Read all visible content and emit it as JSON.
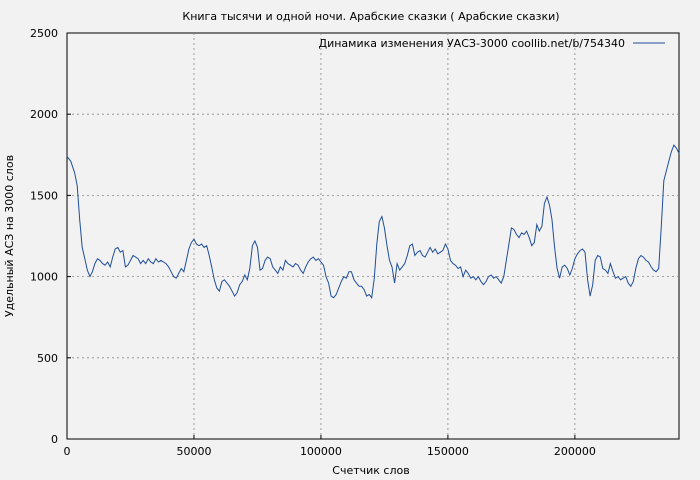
{
  "chart_data": {
    "type": "line",
    "title": "Книга тысячи и одной ночи. Арабские сказки ( Арабские сказки)",
    "xlabel": "Счетчик слов",
    "ylabel": "Удельный АСЗ на 3000 слов",
    "xlim": [
      0,
      241000
    ],
    "ylim": [
      0,
      2500
    ],
    "x_ticks": [
      0,
      50000,
      100000,
      150000,
      200000
    ],
    "y_ticks": [
      0,
      500,
      1000,
      1500,
      2000,
      2500
    ],
    "grid": true,
    "legend_position": "top-right",
    "series": [
      {
        "name": "Динамика изменения УАСЗ-3000 coollib.net/b/754340",
        "color": "#1f4e99",
        "points": [
          [
            0,
            1740
          ],
          [
            1500,
            1710
          ],
          [
            3000,
            1640
          ],
          [
            4000,
            1560
          ],
          [
            5000,
            1350
          ],
          [
            6000,
            1180
          ],
          [
            7000,
            1110
          ],
          [
            8000,
            1040
          ],
          [
            9000,
            1000
          ],
          [
            10000,
            1030
          ],
          [
            11000,
            1080
          ],
          [
            12000,
            1110
          ],
          [
            13000,
            1100
          ],
          [
            14000,
            1080
          ],
          [
            15000,
            1070
          ],
          [
            16000,
            1090
          ],
          [
            17000,
            1060
          ],
          [
            18000,
            1120
          ],
          [
            19000,
            1170
          ],
          [
            20000,
            1180
          ],
          [
            21000,
            1150
          ],
          [
            22000,
            1160
          ],
          [
            23000,
            1060
          ],
          [
            24000,
            1070
          ],
          [
            25000,
            1100
          ],
          [
            26000,
            1130
          ],
          [
            27000,
            1120
          ],
          [
            28000,
            1110
          ],
          [
            29000,
            1080
          ],
          [
            30000,
            1100
          ],
          [
            31000,
            1080
          ],
          [
            32000,
            1110
          ],
          [
            33000,
            1090
          ],
          [
            34000,
            1080
          ],
          [
            35000,
            1110
          ],
          [
            36000,
            1090
          ],
          [
            37000,
            1100
          ],
          [
            38000,
            1090
          ],
          [
            39000,
            1080
          ],
          [
            40000,
            1060
          ],
          [
            41000,
            1030
          ],
          [
            42000,
            1000
          ],
          [
            43000,
            990
          ],
          [
            44000,
            1020
          ],
          [
            45000,
            1050
          ],
          [
            46000,
            1030
          ],
          [
            47000,
            1100
          ],
          [
            48000,
            1170
          ],
          [
            49000,
            1210
          ],
          [
            50000,
            1230
          ],
          [
            51000,
            1200
          ],
          [
            52000,
            1190
          ],
          [
            53000,
            1200
          ],
          [
            54000,
            1180
          ],
          [
            55000,
            1190
          ],
          [
            56000,
            1130
          ],
          [
            57000,
            1060
          ],
          [
            58000,
            980
          ],
          [
            59000,
            930
          ],
          [
            60000,
            910
          ],
          [
            61000,
            970
          ],
          [
            62000,
            980
          ],
          [
            63000,
            960
          ],
          [
            64000,
            940
          ],
          [
            65000,
            910
          ],
          [
            66000,
            880
          ],
          [
            67000,
            900
          ],
          [
            68000,
            950
          ],
          [
            69000,
            970
          ],
          [
            70000,
            1010
          ],
          [
            71000,
            980
          ],
          [
            72000,
            1050
          ],
          [
            73000,
            1190
          ],
          [
            74000,
            1220
          ],
          [
            75000,
            1180
          ],
          [
            76000,
            1040
          ],
          [
            77000,
            1050
          ],
          [
            78000,
            1100
          ],
          [
            79000,
            1120
          ],
          [
            80000,
            1110
          ],
          [
            81000,
            1060
          ],
          [
            82000,
            1040
          ],
          [
            83000,
            1020
          ],
          [
            84000,
            1060
          ],
          [
            85000,
            1040
          ],
          [
            86000,
            1100
          ],
          [
            87000,
            1080
          ],
          [
            88000,
            1070
          ],
          [
            89000,
            1060
          ],
          [
            90000,
            1080
          ],
          [
            91000,
            1070
          ],
          [
            92000,
            1040
          ],
          [
            93000,
            1020
          ],
          [
            94000,
            1060
          ],
          [
            95000,
            1090
          ],
          [
            96000,
            1110
          ],
          [
            97000,
            1120
          ],
          [
            98000,
            1100
          ],
          [
            99000,
            1110
          ],
          [
            100000,
            1090
          ],
          [
            101000,
            1070
          ],
          [
            102000,
            1000
          ],
          [
            103000,
            960
          ],
          [
            104000,
            880
          ],
          [
            105000,
            870
          ],
          [
            106000,
            890
          ],
          [
            107000,
            930
          ],
          [
            108000,
            970
          ],
          [
            109000,
            1000
          ],
          [
            110000,
            990
          ],
          [
            111000,
            1030
          ],
          [
            112000,
            1030
          ],
          [
            113000,
            980
          ],
          [
            114000,
            960
          ],
          [
            115000,
            940
          ],
          [
            116000,
            940
          ],
          [
            117000,
            920
          ],
          [
            118000,
            880
          ],
          [
            119000,
            890
          ],
          [
            120000,
            870
          ],
          [
            121000,
            990
          ],
          [
            122000,
            1200
          ],
          [
            123000,
            1340
          ],
          [
            124000,
            1370
          ],
          [
            125000,
            1300
          ],
          [
            126000,
            1190
          ],
          [
            127000,
            1100
          ],
          [
            128000,
            1060
          ],
          [
            129000,
            960
          ],
          [
            130000,
            1080
          ],
          [
            131000,
            1040
          ],
          [
            132000,
            1060
          ],
          [
            133000,
            1080
          ],
          [
            134000,
            1130
          ],
          [
            135000,
            1190
          ],
          [
            136000,
            1200
          ],
          [
            137000,
            1130
          ],
          [
            138000,
            1150
          ],
          [
            139000,
            1160
          ],
          [
            140000,
            1130
          ],
          [
            141000,
            1120
          ],
          [
            142000,
            1150
          ],
          [
            143000,
            1180
          ],
          [
            144000,
            1150
          ],
          [
            145000,
            1170
          ],
          [
            146000,
            1140
          ],
          [
            147000,
            1150
          ],
          [
            148000,
            1160
          ],
          [
            149000,
            1200
          ],
          [
            150000,
            1170
          ],
          [
            151000,
            1100
          ],
          [
            152000,
            1080
          ],
          [
            153000,
            1070
          ],
          [
            154000,
            1050
          ],
          [
            155000,
            1060
          ],
          [
            156000,
            1000
          ],
          [
            157000,
            1040
          ],
          [
            158000,
            1020
          ],
          [
            159000,
            990
          ],
          [
            160000,
            1000
          ],
          [
            161000,
            980
          ],
          [
            162000,
            1000
          ],
          [
            163000,
            970
          ],
          [
            164000,
            950
          ],
          [
            165000,
            970
          ],
          [
            166000,
            1000
          ],
          [
            167000,
            1010
          ],
          [
            168000,
            990
          ],
          [
            169000,
            1000
          ],
          [
            170000,
            980
          ],
          [
            171000,
            960
          ],
          [
            172000,
            1000
          ],
          [
            173000,
            1100
          ],
          [
            174000,
            1200
          ],
          [
            175000,
            1300
          ],
          [
            176000,
            1290
          ],
          [
            177000,
            1260
          ],
          [
            178000,
            1240
          ],
          [
            179000,
            1270
          ],
          [
            180000,
            1260
          ],
          [
            181000,
            1280
          ],
          [
            182000,
            1240
          ],
          [
            183000,
            1190
          ],
          [
            184000,
            1210
          ],
          [
            185000,
            1320
          ],
          [
            186000,
            1280
          ],
          [
            187000,
            1310
          ],
          [
            188000,
            1450
          ],
          [
            189000,
            1490
          ],
          [
            190000,
            1440
          ],
          [
            191000,
            1350
          ],
          [
            192000,
            1180
          ],
          [
            193000,
            1050
          ],
          [
            194000,
            990
          ],
          [
            195000,
            1060
          ],
          [
            196000,
            1070
          ],
          [
            197000,
            1050
          ],
          [
            198000,
            1010
          ],
          [
            199000,
            1050
          ],
          [
            200000,
            1110
          ],
          [
            201000,
            1140
          ],
          [
            202000,
            1160
          ],
          [
            203000,
            1170
          ],
          [
            204000,
            1150
          ],
          [
            205000,
            980
          ],
          [
            206000,
            880
          ],
          [
            207000,
            950
          ],
          [
            208000,
            1100
          ],
          [
            209000,
            1130
          ],
          [
            210000,
            1120
          ],
          [
            211000,
            1050
          ],
          [
            212000,
            1040
          ],
          [
            213000,
            1020
          ],
          [
            214000,
            1080
          ],
          [
            215000,
            1030
          ],
          [
            216000,
            990
          ],
          [
            217000,
            1000
          ],
          [
            218000,
            980
          ],
          [
            219000,
            990
          ],
          [
            220000,
            1000
          ],
          [
            221000,
            960
          ],
          [
            222000,
            940
          ],
          [
            223000,
            970
          ],
          [
            224000,
            1050
          ],
          [
            225000,
            1110
          ],
          [
            226000,
            1130
          ],
          [
            227000,
            1120
          ],
          [
            228000,
            1100
          ],
          [
            229000,
            1090
          ],
          [
            230000,
            1060
          ],
          [
            231000,
            1040
          ],
          [
            232000,
            1030
          ],
          [
            233000,
            1050
          ],
          [
            234000,
            1300
          ],
          [
            235000,
            1590
          ],
          [
            236000,
            1650
          ],
          [
            237000,
            1710
          ],
          [
            238000,
            1770
          ],
          [
            239000,
            1810
          ],
          [
            240000,
            1790
          ],
          [
            241000,
            1760
          ]
        ]
      }
    ]
  }
}
